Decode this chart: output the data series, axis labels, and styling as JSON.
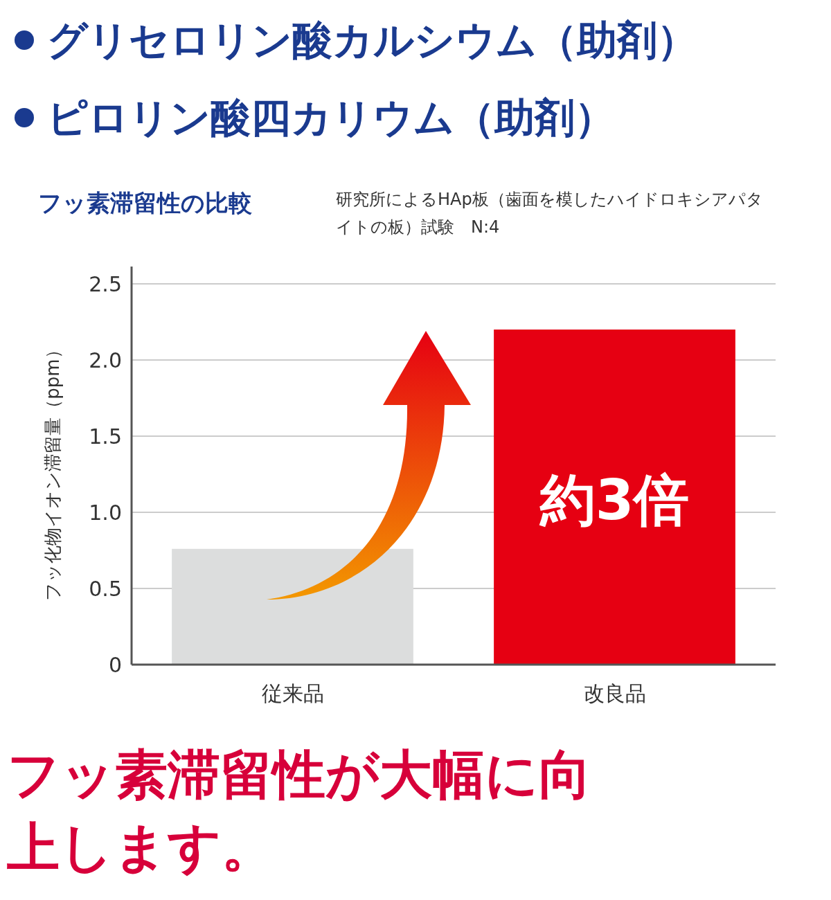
{
  "chart_data": {
    "type": "bar",
    "title": "フッ素滞留性の比較",
    "subtitle": "研究所によるHAp板（歯面を模したハイドロキシアパタイトの板）試験　N:4",
    "ylabel": "フッ化物イオン滞留量（ppm）",
    "categories": [
      "従来品",
      "改良品"
    ],
    "values": [
      0.76,
      2.2
    ],
    "colors": [
      "#dcdddd",
      "#e60012"
    ],
    "ylim": [
      0,
      2.5
    ],
    "yticks": [
      0,
      0.5,
      {
        "value": 1,
        "label": "1.0"
      },
      1.5,
      {
        "value": 2,
        "label": "2.0"
      },
      2.5
    ],
    "grid": "y",
    "annotations": [
      "グリセロリン酸カルシウム（助剤）",
      "ピロリン酸四カリウム（助剤）",
      "約3倍",
      "フッ素滞留性が大幅に向上します。"
    ]
  }
}
